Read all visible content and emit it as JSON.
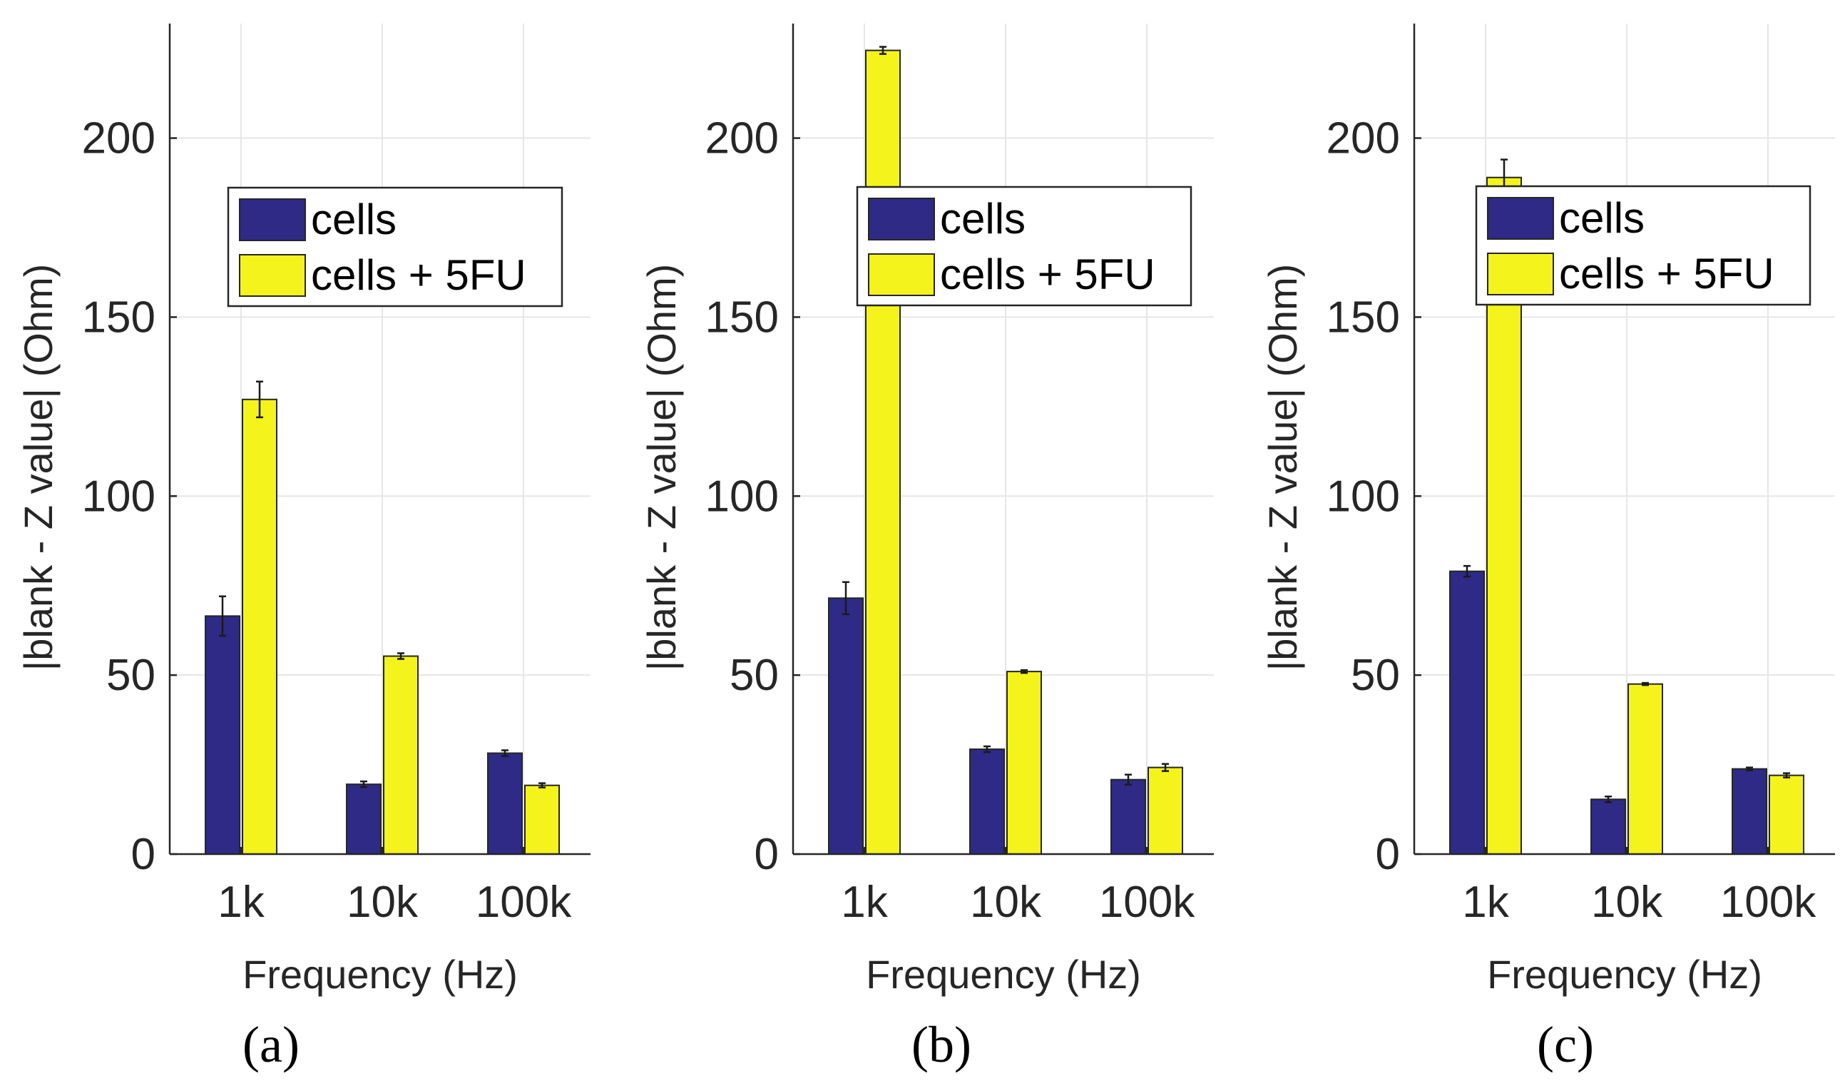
{
  "colors": {
    "cells": "#2e2a86",
    "cells_5fu": "#f4f41c"
  },
  "chart_data": [
    {
      "type": "bar",
      "panel": "(a)",
      "categories": [
        "1k",
        "10k",
        "100k"
      ],
      "series": [
        {
          "name": "cells",
          "values": [
            66.5,
            19.5,
            28.2
          ],
          "errors": [
            5.5,
            0.8,
            0.8
          ]
        },
        {
          "name": "cells + 5FU",
          "values": [
            127,
            55.3,
            19.2
          ],
          "errors": [
            5,
            0.8,
            0.6
          ]
        }
      ],
      "xlabel": "Frequency (Hz)",
      "ylabel": "|blank - Z value| (Ohm)",
      "ylim": [
        0,
        232
      ],
      "yticks": [
        "0",
        "50",
        "100",
        "150",
        "200"
      ],
      "grid": true,
      "legend_position": "top-right"
    },
    {
      "type": "bar",
      "panel": "(b)",
      "categories": [
        "1k",
        "10k",
        "100k"
      ],
      "series": [
        {
          "name": "cells",
          "values": [
            71.5,
            29.3,
            20.8
          ],
          "errors": [
            4.5,
            0.8,
            1.4
          ]
        },
        {
          "name": "cells + 5FU",
          "values": [
            224.5,
            51,
            24.2
          ],
          "errors": [
            1,
            0.4,
            1
          ]
        }
      ],
      "xlabel": "Frequency (Hz)",
      "ylabel": "|blank - Z value| (Ohm)",
      "ylim": [
        0,
        232
      ],
      "yticks": [
        "0",
        "50",
        "100",
        "150",
        "200"
      ],
      "grid": true,
      "legend_position": "top-right"
    },
    {
      "type": "bar",
      "panel": "(c)",
      "categories": [
        "1k",
        "10k",
        "100k"
      ],
      "series": [
        {
          "name": "cells",
          "values": [
            79,
            15.3,
            23.8
          ],
          "errors": [
            1.5,
            0.8,
            0.4
          ]
        },
        {
          "name": "cells + 5FU",
          "values": [
            189,
            47.5,
            22
          ],
          "errors": [
            5,
            0.3,
            0.6
          ]
        }
      ],
      "xlabel": "Frequency (Hz)",
      "ylabel": "|blank - Z value| (Ohm)",
      "ylim": [
        0,
        232
      ],
      "yticks": [
        "0",
        "50",
        "100",
        "150",
        "200"
      ],
      "grid": true,
      "legend_position": "top-right"
    }
  ]
}
